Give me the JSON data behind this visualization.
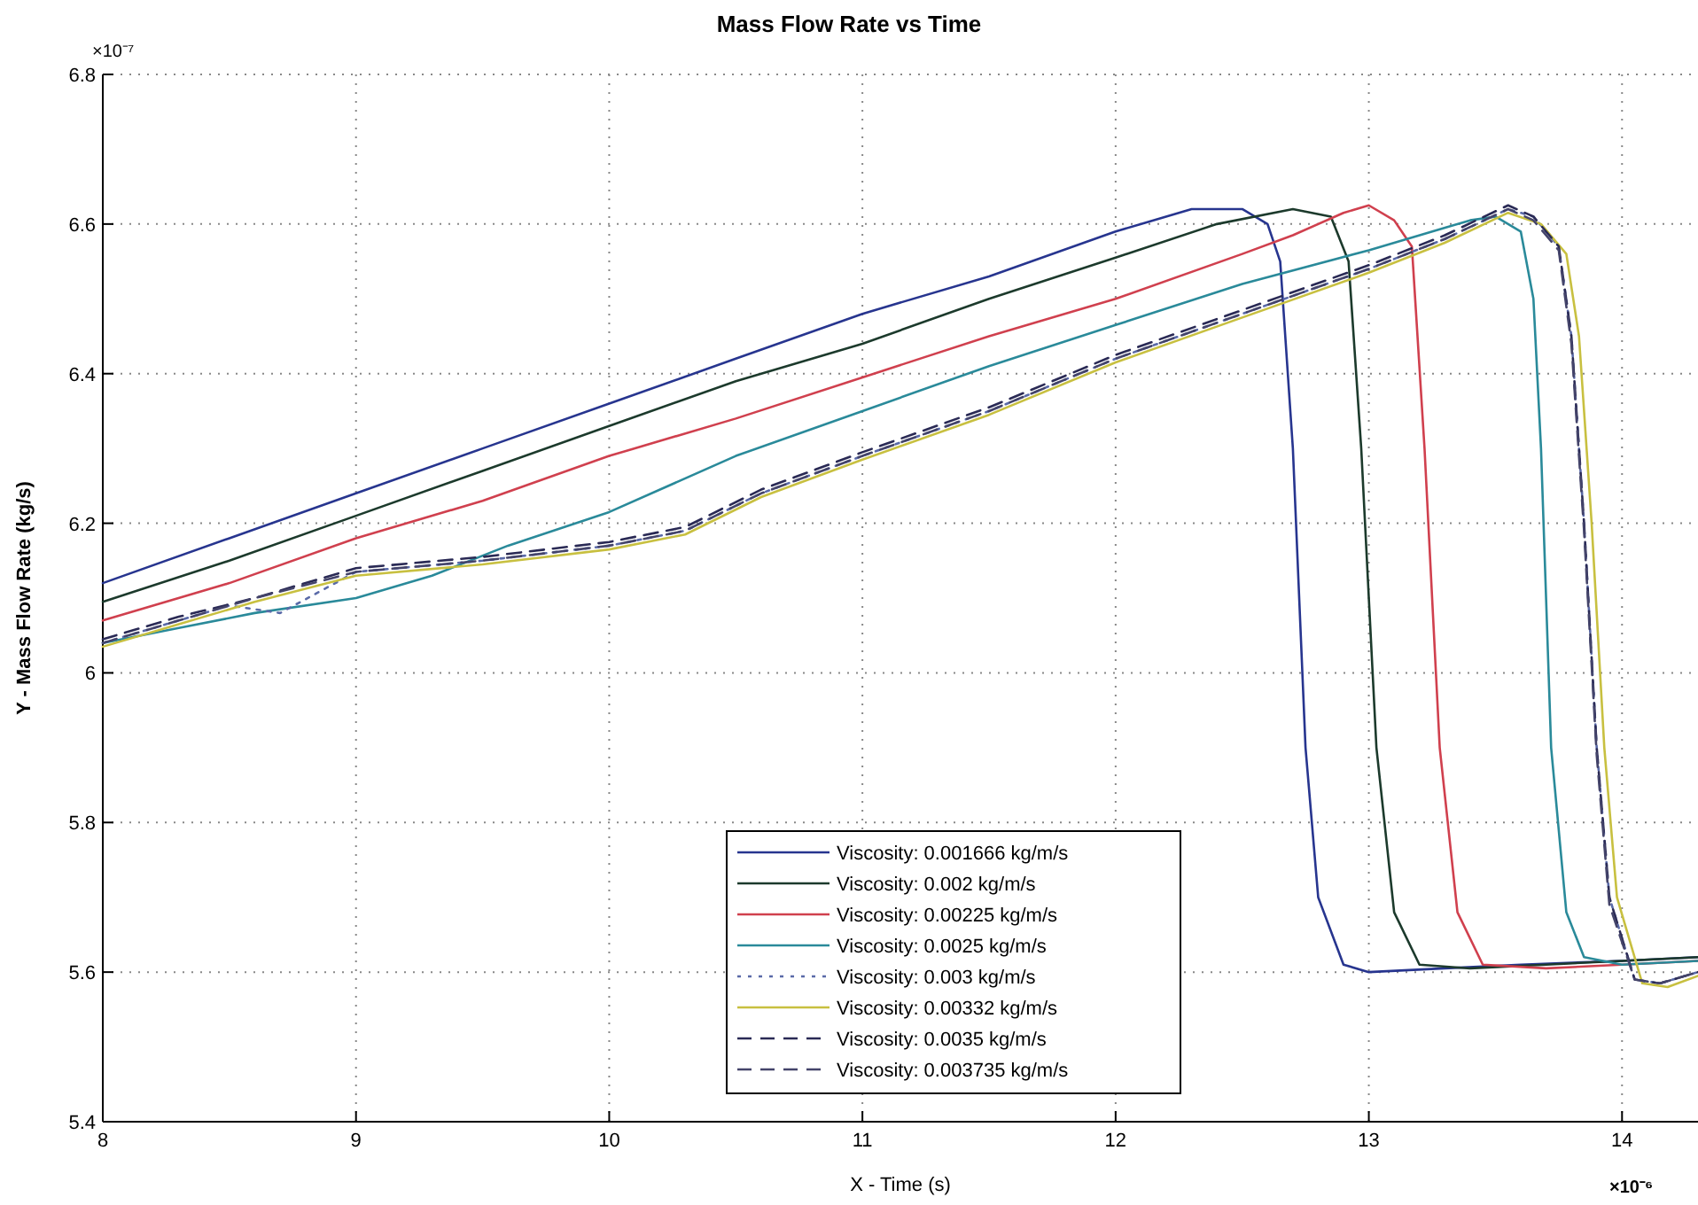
{
  "chart_data": {
    "type": "line",
    "title": "Mass Flow Rate vs Time",
    "xlabel": "X - Time (s)",
    "ylabel": "Y - Mass Flow Rate (kg/s)",
    "annotations": [
      "×10⁻⁷",
      "×10⁻⁶"
    ],
    "xlim": [
      8,
      14.3
    ],
    "xticks": [
      8,
      9,
      10,
      11,
      12,
      13,
      14
    ],
    "ylim": [
      5.4,
      6.8
    ],
    "yticks": [
      5.4,
      5.6,
      5.8,
      6,
      6.2,
      6.4,
      6.6,
      6.8
    ],
    "grid": true,
    "legend": "bottom",
    "marker": "none",
    "series": [
      {
        "name": "Viscosity: 0.001666 kg/m/s",
        "color": "#27358f",
        "line_style": "solid",
        "x": [
          8,
          8.5,
          9,
          9.5,
          10,
          10.5,
          11,
          11.5,
          12,
          12.3,
          12.5,
          12.6,
          12.65,
          12.7,
          12.75,
          12.8,
          12.9,
          13,
          13.3,
          13.6,
          14,
          14.3
        ],
        "values": [
          6.12,
          6.18,
          6.24,
          6.3,
          6.36,
          6.42,
          6.48,
          6.53,
          6.59,
          6.62,
          6.62,
          6.6,
          6.55,
          6.3,
          5.9,
          5.7,
          5.61,
          5.6,
          5.605,
          5.61,
          5.615,
          5.62
        ]
      },
      {
        "name": "Viscosity:  0.002 kg/m/s",
        "color": "#1c3a2c",
        "line_style": "solid",
        "x": [
          8,
          8.5,
          9,
          9.5,
          10,
          10.5,
          11,
          11.5,
          12,
          12.4,
          12.7,
          12.85,
          12.92,
          12.97,
          13.03,
          13.1,
          13.2,
          13.4,
          13.7,
          14,
          14.3
        ],
        "values": [
          6.095,
          6.15,
          6.21,
          6.27,
          6.33,
          6.39,
          6.44,
          6.5,
          6.555,
          6.6,
          6.62,
          6.61,
          6.55,
          6.3,
          5.9,
          5.68,
          5.61,
          5.605,
          5.61,
          5.615,
          5.62
        ]
      },
      {
        "name": "Viscosity:  0.00225 kg/m/s",
        "color": "#d0404e",
        "line_style": "solid",
        "x": [
          8,
          8.5,
          9,
          9.5,
          10,
          10.5,
          11,
          11.5,
          12,
          12.5,
          12.7,
          12.9,
          13,
          13.1,
          13.17,
          13.22,
          13.28,
          13.35,
          13.45,
          13.7,
          14,
          14.3
        ],
        "values": [
          6.07,
          6.12,
          6.18,
          6.23,
          6.29,
          6.34,
          6.395,
          6.45,
          6.5,
          6.56,
          6.585,
          6.615,
          6.625,
          6.605,
          6.57,
          6.3,
          5.9,
          5.68,
          5.61,
          5.605,
          5.61,
          5.615
        ]
      },
      {
        "name": "Viscosity:  0.0025 kg/m/s",
        "color": "#2a8a9a",
        "line_style": "solid",
        "x": [
          8,
          8.3,
          8.6,
          9,
          9.3,
          9.6,
          10,
          10.5,
          11,
          11.5,
          12,
          12.5,
          13,
          13.4,
          13.5,
          13.6,
          13.65,
          13.68,
          13.72,
          13.78,
          13.85,
          14,
          14.3
        ],
        "values": [
          6.04,
          6.06,
          6.08,
          6.1,
          6.13,
          6.17,
          6.215,
          6.29,
          6.35,
          6.41,
          6.465,
          6.52,
          6.565,
          6.605,
          6.61,
          6.59,
          6.5,
          6.3,
          5.9,
          5.68,
          5.62,
          5.61,
          5.615
        ]
      },
      {
        "name": "Viscosity:  0.003 kg/m/s",
        "color": "#5a6aa8",
        "line_style": "dotted",
        "x": [
          8,
          8.3,
          8.5,
          8.7,
          9,
          9.5,
          10,
          10.3,
          10.6,
          11,
          11.5,
          12,
          12.5,
          13,
          13.3,
          13.55,
          13.65,
          13.75,
          13.8,
          13.85,
          13.9,
          13.95,
          14.05,
          14.15,
          14.3
        ],
        "values": [
          6.04,
          6.07,
          6.09,
          6.08,
          6.135,
          6.15,
          6.17,
          6.19,
          6.24,
          6.29,
          6.35,
          6.42,
          6.48,
          6.54,
          6.58,
          6.62,
          6.61,
          6.57,
          6.45,
          6.2,
          5.9,
          5.7,
          5.59,
          5.585,
          5.6
        ]
      },
      {
        "name": "Viscosity:  0.00332 kg/m/s",
        "color": "#c8c040",
        "line_style": "solid",
        "x": [
          8,
          8.3,
          8.6,
          9,
          9.5,
          10,
          10.3,
          10.6,
          11,
          11.5,
          12,
          12.5,
          13,
          13.3,
          13.55,
          13.68,
          13.78,
          13.83,
          13.88,
          13.93,
          13.98,
          14.08,
          14.18,
          14.3
        ],
        "values": [
          6.035,
          6.065,
          6.095,
          6.13,
          6.145,
          6.165,
          6.185,
          6.235,
          6.285,
          6.345,
          6.415,
          6.475,
          6.535,
          6.575,
          6.615,
          6.6,
          6.56,
          6.45,
          6.2,
          5.9,
          5.7,
          5.585,
          5.58,
          5.595
        ]
      },
      {
        "name": "Viscosity:  0.0035 kg/m/s",
        "color": "#2a2a55",
        "line_style": "dashed",
        "x": [
          8,
          8.3,
          8.6,
          9,
          9.5,
          10,
          10.3,
          10.6,
          11,
          11.5,
          12,
          12.5,
          13,
          13.3,
          13.55,
          13.65,
          13.75,
          13.8,
          13.85,
          13.9,
          13.95,
          14.05,
          14.15,
          14.3
        ],
        "values": [
          6.045,
          6.075,
          6.1,
          6.14,
          6.155,
          6.175,
          6.195,
          6.245,
          6.295,
          6.355,
          6.425,
          6.485,
          6.545,
          6.585,
          6.625,
          6.61,
          6.57,
          6.45,
          6.2,
          5.9,
          5.7,
          5.59,
          5.585,
          5.6
        ]
      },
      {
        "name": "Viscosity: 0.003735 kg/m/s",
        "color": "#44446a",
        "line_style": "dashed",
        "x": [
          8,
          8.3,
          8.6,
          9,
          9.5,
          10,
          10.3,
          10.6,
          11,
          11.5,
          12,
          12.5,
          13,
          13.3,
          13.55,
          13.65,
          13.75,
          13.8,
          13.85,
          13.9,
          13.95,
          14.05,
          14.15,
          14.3
        ],
        "values": [
          6.04,
          6.07,
          6.1,
          6.135,
          6.15,
          6.17,
          6.19,
          6.24,
          6.29,
          6.35,
          6.42,
          6.48,
          6.54,
          6.58,
          6.62,
          6.605,
          6.565,
          6.44,
          6.19,
          5.89,
          5.69,
          5.59,
          5.585,
          5.6
        ]
      }
    ]
  }
}
